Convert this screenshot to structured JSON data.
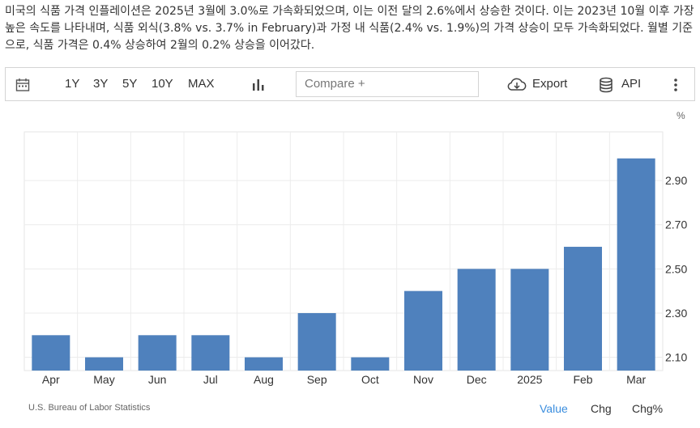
{
  "description": "미국의 식품 가격 인플레이션은 2025년 3월에 3.0%로 가속화되었으며, 이는 이전 달의 2.6%에서 상승한 것이다. 이는 2023년 10월 이후 가장 높은 속도를 나타내며, 식품 외식(3.8% vs. 3.7% in February)과 가정 내 식품(2.4% vs. 1.9%)의 가격 상승이 모두 가속화되었다. 월별 기준으로, 식품 가격은 0.4% 상승하여 2월의 0.2% 상승을 이어갔다.",
  "toolbar": {
    "ranges": [
      "1Y",
      "3Y",
      "5Y",
      "10Y",
      "MAX"
    ],
    "compare_placeholder": "Compare +",
    "export_label": "Export",
    "api_label": "API"
  },
  "chart_data": {
    "type": "bar",
    "unit_label": "%",
    "categories": [
      "Apr",
      "May",
      "Jun",
      "Jul",
      "Aug",
      "Sep",
      "Oct",
      "Nov",
      "Dec",
      "2025",
      "Feb",
      "Mar"
    ],
    "values": [
      2.2,
      2.1,
      2.2,
      2.2,
      2.1,
      2.3,
      2.1,
      2.4,
      2.5,
      2.5,
      2.6,
      3.0
    ],
    "y_ticks": [
      "2.10",
      "2.30",
      "2.50",
      "2.70",
      "2.90"
    ],
    "ylim": [
      2.04,
      3.12
    ],
    "bar_color": "#4f81bd",
    "grid": true
  },
  "footer": {
    "source": "U.S. Bureau of Labor Statistics",
    "tabs": [
      "Value",
      "Chg",
      "Chg%"
    ]
  },
  "colors": {
    "active_tab": "#3a8dde",
    "text": "#333333"
  }
}
